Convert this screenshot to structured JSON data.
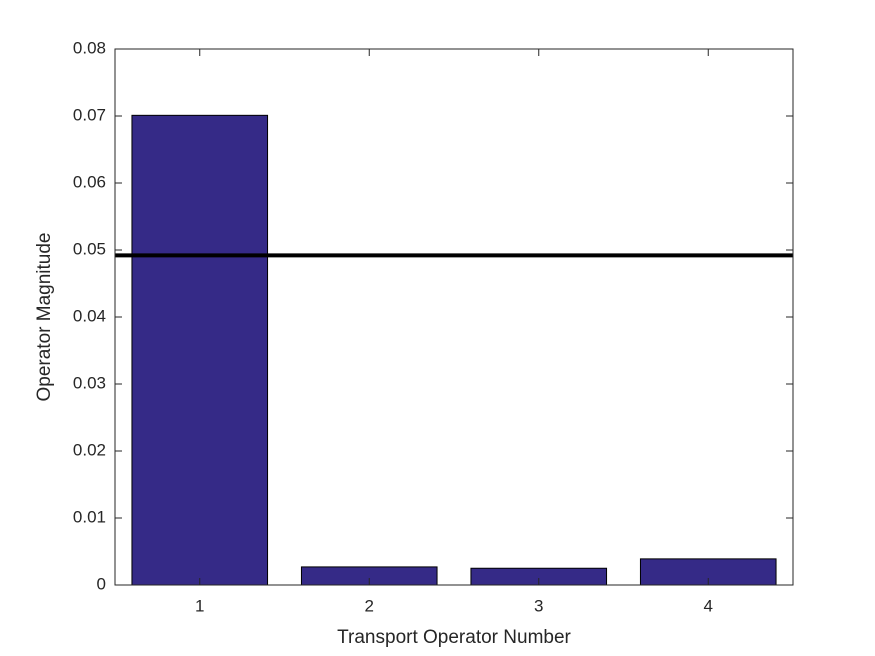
{
  "chart_data": {
    "type": "bar",
    "xlabel": "Transport Operator Number",
    "ylabel": "Operator Magnitude",
    "x": [
      1,
      2,
      3,
      4
    ],
    "values": [
      0.0701,
      0.0027,
      0.0025,
      0.0039
    ],
    "color": "#352a87",
    "edge_color": "#000000",
    "bar_width": 0.8,
    "xlim": [
      0.5,
      4.5
    ],
    "xticks": [
      1,
      2,
      3,
      4
    ],
    "ylim": [
      0,
      0.08
    ],
    "yticks": [
      0,
      0.01,
      0.02,
      0.03,
      0.04,
      0.05,
      0.06,
      0.07,
      0.08
    ],
    "hline": {
      "value": 0.0492,
      "color": "#000000"
    },
    "grid": false
  }
}
